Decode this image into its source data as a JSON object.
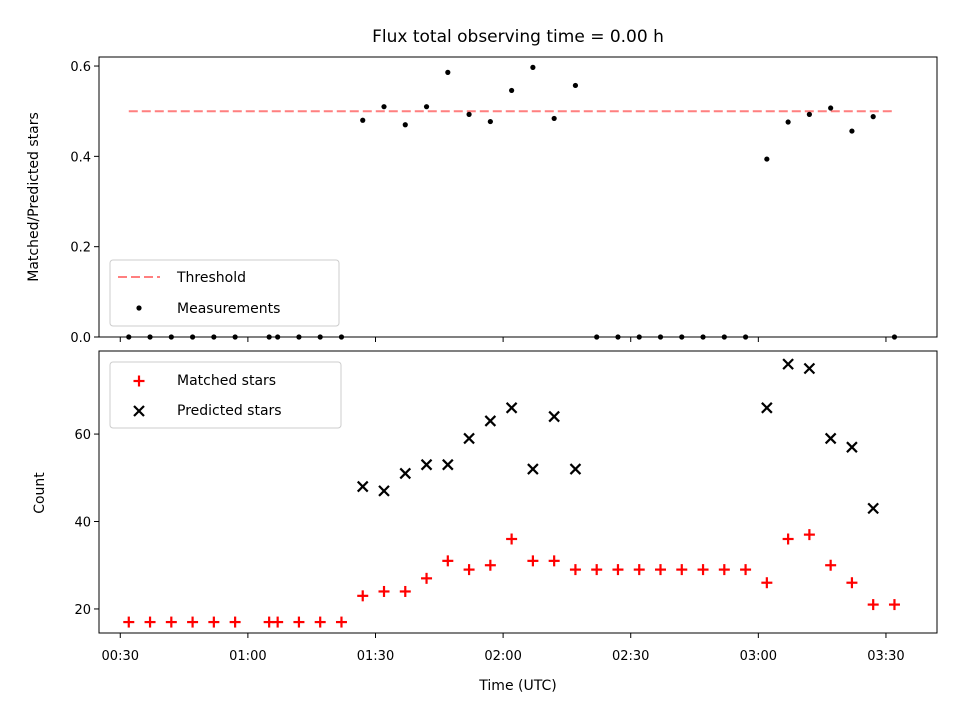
{
  "chart_data": [
    {
      "type": "scatter",
      "title": "Flux total observing time = 0.00 h",
      "ylabel": "Matched/Predicted stars",
      "xlabel": "",
      "ylim": [
        0,
        0.62
      ],
      "yticks": [
        "0.0",
        "0.2",
        "0.4",
        "0.6"
      ],
      "ytick_values": [
        0,
        0.2,
        0.4,
        0.6
      ],
      "legend_position": "lower-left",
      "threshold": {
        "name": "Threshold",
        "value": 0.5,
        "x_start": "00:32",
        "x_end": "03:32",
        "color": "#ff7f7f",
        "style": "dashed"
      },
      "series": [
        {
          "name": "Measurements",
          "color": "#000000",
          "marker": "dot",
          "points": [
            [
              "00:32",
              0
            ],
            [
              "00:37",
              0
            ],
            [
              "00:42",
              0
            ],
            [
              "00:47",
              0
            ],
            [
              "00:52",
              0
            ],
            [
              "00:57",
              0
            ],
            [
              "01:05",
              0
            ],
            [
              "01:07",
              0
            ],
            [
              "01:12",
              0
            ],
            [
              "01:17",
              0
            ],
            [
              "01:22",
              0
            ],
            [
              "01:27",
              0.48
            ],
            [
              "01:32",
              0.51
            ],
            [
              "01:37",
              0.47
            ],
            [
              "01:42",
              0.51
            ],
            [
              "01:47",
              0.586
            ],
            [
              "01:52",
              0.493
            ],
            [
              "01:57",
              0.477
            ],
            [
              "02:02",
              0.546
            ],
            [
              "02:07",
              0.597
            ],
            [
              "02:12",
              0.484
            ],
            [
              "02:17",
              0.557
            ],
            [
              "02:22",
              0
            ],
            [
              "02:27",
              0
            ],
            [
              "02:32",
              0
            ],
            [
              "02:37",
              0
            ],
            [
              "02:42",
              0
            ],
            [
              "02:47",
              0
            ],
            [
              "02:52",
              0
            ],
            [
              "02:57",
              0
            ],
            [
              "03:02",
              0.394
            ],
            [
              "03:07",
              0.476
            ],
            [
              "03:12",
              0.493
            ],
            [
              "03:17",
              0.507
            ],
            [
              "03:22",
              0.456
            ],
            [
              "03:27",
              0.488
            ],
            [
              "03:32",
              0
            ]
          ]
        }
      ]
    },
    {
      "type": "scatter",
      "title": "",
      "ylabel": "Count",
      "xlabel": "Time (UTC)",
      "ylim": [
        14.5,
        79
      ],
      "yticks": [
        "20",
        "40",
        "60"
      ],
      "ytick_values": [
        20,
        40,
        60
      ],
      "xlim": [
        "00:25",
        "03:42"
      ],
      "xticks": [
        "00:30",
        "01:00",
        "01:30",
        "02:00",
        "02:30",
        "03:00",
        "03:30"
      ],
      "legend_position": "upper-left",
      "series": [
        {
          "name": "Matched stars",
          "color": "#ff0000",
          "marker": "plus",
          "points": [
            [
              "00:32",
              17
            ],
            [
              "00:37",
              17
            ],
            [
              "00:42",
              17
            ],
            [
              "00:47",
              17
            ],
            [
              "00:52",
              17
            ],
            [
              "00:57",
              17
            ],
            [
              "01:05",
              17
            ],
            [
              "01:07",
              17
            ],
            [
              "01:12",
              17
            ],
            [
              "01:17",
              17
            ],
            [
              "01:22",
              17
            ],
            [
              "01:27",
              23
            ],
            [
              "01:32",
              24
            ],
            [
              "01:37",
              24
            ],
            [
              "01:42",
              27
            ],
            [
              "01:47",
              31
            ],
            [
              "01:52",
              29
            ],
            [
              "01:57",
              30
            ],
            [
              "02:02",
              36
            ],
            [
              "02:07",
              31
            ],
            [
              "02:12",
              31
            ],
            [
              "02:17",
              29
            ],
            [
              "02:22",
              29
            ],
            [
              "02:27",
              29
            ],
            [
              "02:32",
              29
            ],
            [
              "02:37",
              29
            ],
            [
              "02:42",
              29
            ],
            [
              "02:47",
              29
            ],
            [
              "02:52",
              29
            ],
            [
              "02:57",
              29
            ],
            [
              "03:02",
              26
            ],
            [
              "03:07",
              36
            ],
            [
              "03:12",
              37
            ],
            [
              "03:17",
              30
            ],
            [
              "03:22",
              26
            ],
            [
              "03:27",
              21
            ],
            [
              "03:32",
              21
            ]
          ]
        },
        {
          "name": "Predicted stars",
          "color": "#000000",
          "marker": "x",
          "points": [
            [
              "01:27",
              48
            ],
            [
              "01:32",
              47
            ],
            [
              "01:37",
              51
            ],
            [
              "01:42",
              53
            ],
            [
              "01:47",
              53
            ],
            [
              "01:52",
              59
            ],
            [
              "01:57",
              63
            ],
            [
              "02:02",
              66
            ],
            [
              "02:07",
              52
            ],
            [
              "02:12",
              64
            ],
            [
              "02:17",
              52
            ],
            [
              "03:02",
              66
            ],
            [
              "03:07",
              76
            ],
            [
              "03:12",
              75
            ],
            [
              "03:17",
              59
            ],
            [
              "03:22",
              57
            ],
            [
              "03:27",
              43
            ]
          ]
        }
      ]
    }
  ]
}
